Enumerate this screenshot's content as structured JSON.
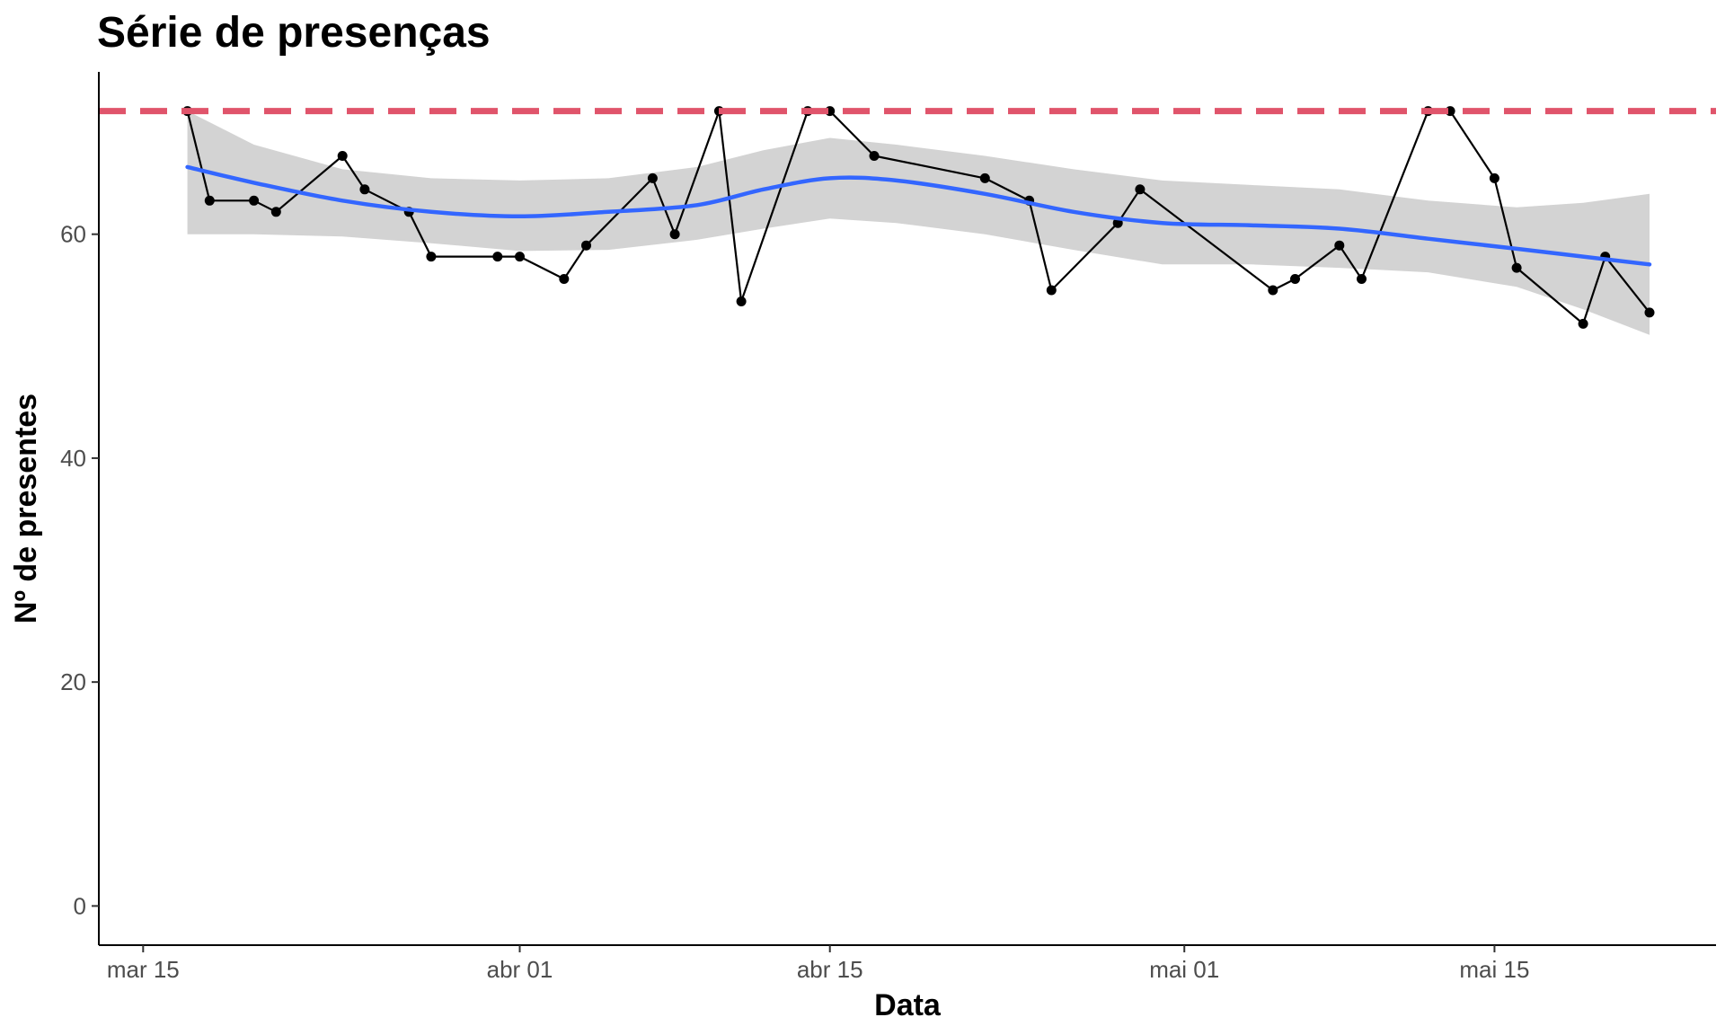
{
  "chart_data": {
    "type": "line",
    "title": "Série de presenças",
    "xlabel": "Data",
    "ylabel": "Nº de presentes",
    "x_axis": {
      "type": "date",
      "range": [
        "2023-03-13",
        "2023-05-25"
      ],
      "ticks": [
        {
          "date": "2023-03-15",
          "label": "mar 15"
        },
        {
          "date": "2023-04-01",
          "label": "abr 01"
        },
        {
          "date": "2023-04-15",
          "label": "abr 15"
        },
        {
          "date": "2023-05-01",
          "label": "mai 01"
        },
        {
          "date": "2023-05-15",
          "label": "mai 15"
        }
      ]
    },
    "y_axis": {
      "range": [
        -3.5,
        74.5
      ],
      "ticks": [
        0,
        20,
        40,
        60
      ]
    },
    "grid": false,
    "legend": "none",
    "reference_line": {
      "y": 71,
      "color": "#e0546b",
      "style": "dashed"
    },
    "series": [
      {
        "type": "line+points",
        "color": "#000000",
        "points": [
          {
            "x": "2023-03-17",
            "y": 71
          },
          {
            "x": "2023-03-18",
            "y": 63
          },
          {
            "x": "2023-03-20",
            "y": 63
          },
          {
            "x": "2023-03-21",
            "y": 62
          },
          {
            "x": "2023-03-24",
            "y": 67
          },
          {
            "x": "2023-03-25",
            "y": 64
          },
          {
            "x": "2023-03-27",
            "y": 62
          },
          {
            "x": "2023-03-28",
            "y": 58
          },
          {
            "x": "2023-03-31",
            "y": 58
          },
          {
            "x": "2023-04-01",
            "y": 58
          },
          {
            "x": "2023-04-03",
            "y": 56
          },
          {
            "x": "2023-04-04",
            "y": 59
          },
          {
            "x": "2023-04-07",
            "y": 65
          },
          {
            "x": "2023-04-08",
            "y": 60
          },
          {
            "x": "2023-04-10",
            "y": 71
          },
          {
            "x": "2023-04-11",
            "y": 54
          },
          {
            "x": "2023-04-14",
            "y": 71
          },
          {
            "x": "2023-04-15",
            "y": 71
          },
          {
            "x": "2023-04-17",
            "y": 67
          },
          {
            "x": "2023-04-22",
            "y": 65
          },
          {
            "x": "2023-04-24",
            "y": 63
          },
          {
            "x": "2023-04-25",
            "y": 55
          },
          {
            "x": "2023-04-28",
            "y": 61
          },
          {
            "x": "2023-04-29",
            "y": 64
          },
          {
            "x": "2023-05-05",
            "y": 55
          },
          {
            "x": "2023-05-06",
            "y": 56
          },
          {
            "x": "2023-05-08",
            "y": 59
          },
          {
            "x": "2023-05-09",
            "y": 56
          },
          {
            "x": "2023-05-12",
            "y": 71
          },
          {
            "x": "2023-05-13",
            "y": 71
          },
          {
            "x": "2023-05-15",
            "y": 65
          },
          {
            "x": "2023-05-16",
            "y": 57
          },
          {
            "x": "2023-05-19",
            "y": 52
          },
          {
            "x": "2023-05-20",
            "y": 58
          },
          {
            "x": "2023-05-22",
            "y": 53
          }
        ]
      },
      {
        "type": "smooth",
        "color": "#3366ff",
        "band_color": "#d3d3d3",
        "points": [
          {
            "x": "2023-03-17",
            "y": 66.0,
            "lo": 60.0,
            "hi": 71.0
          },
          {
            "x": "2023-03-20",
            "y": 64.6,
            "lo": 60.0,
            "hi": 68.0
          },
          {
            "x": "2023-03-24",
            "y": 63.0,
            "lo": 59.8,
            "hi": 65.8
          },
          {
            "x": "2023-03-28",
            "y": 62.0,
            "lo": 59.2,
            "hi": 65.0
          },
          {
            "x": "2023-04-01",
            "y": 61.6,
            "lo": 58.5,
            "hi": 64.8
          },
          {
            "x": "2023-04-05",
            "y": 62.0,
            "lo": 58.6,
            "hi": 65.0
          },
          {
            "x": "2023-04-09",
            "y": 62.6,
            "lo": 59.5,
            "hi": 66.0
          },
          {
            "x": "2023-04-12",
            "y": 64.0,
            "lo": 60.5,
            "hi": 67.5
          },
          {
            "x": "2023-04-15",
            "y": 65.0,
            "lo": 61.4,
            "hi": 68.6
          },
          {
            "x": "2023-04-18",
            "y": 64.8,
            "lo": 61.0,
            "hi": 68.0
          },
          {
            "x": "2023-04-22",
            "y": 63.6,
            "lo": 60.0,
            "hi": 67.0
          },
          {
            "x": "2023-04-26",
            "y": 62.0,
            "lo": 58.6,
            "hi": 65.8
          },
          {
            "x": "2023-04-30",
            "y": 61.0,
            "lo": 57.3,
            "hi": 64.8
          },
          {
            "x": "2023-05-04",
            "y": 60.8,
            "lo": 57.3,
            "hi": 64.4
          },
          {
            "x": "2023-05-08",
            "y": 60.5,
            "lo": 57.0,
            "hi": 64.0
          },
          {
            "x": "2023-05-12",
            "y": 59.6,
            "lo": 56.6,
            "hi": 63.0
          },
          {
            "x": "2023-05-16",
            "y": 58.7,
            "lo": 55.3,
            "hi": 62.4
          },
          {
            "x": "2023-05-19",
            "y": 58.0,
            "lo": 53.3,
            "hi": 62.8
          },
          {
            "x": "2023-05-22",
            "y": 57.3,
            "lo": 51.0,
            "hi": 63.6
          }
        ]
      }
    ]
  }
}
